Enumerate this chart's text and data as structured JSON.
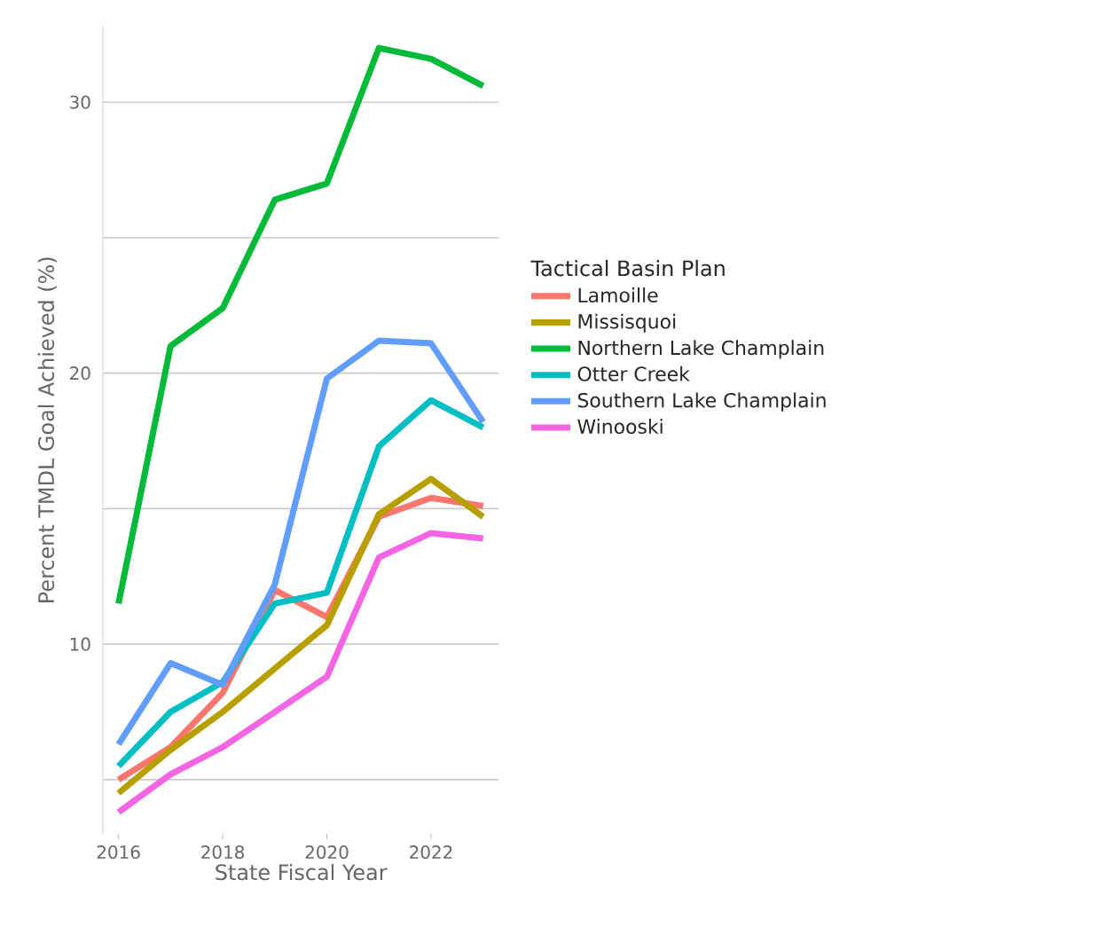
{
  "chart_data": {
    "type": "line",
    "xlabel": "State Fiscal Year",
    "ylabel": "Percent TMDL Goal Achieved (%)",
    "legend_title": "Tactical Basin Plan",
    "legend": "right",
    "grid": "y",
    "x": [
      2016,
      2017,
      2018,
      2019,
      2020,
      2021,
      2022,
      2023
    ],
    "xlim": [
      2015.7,
      2023.3
    ],
    "xticks": [
      2016,
      2018,
      2020,
      2022
    ],
    "ylim": [
      3,
      32.8
    ],
    "yticks": [
      {
        "value": 5,
        "label": null
      },
      10,
      {
        "value": 15,
        "label": null
      },
      20,
      {
        "value": 25,
        "label": null
      },
      30
    ],
    "series": [
      {
        "name": "Lamoille",
        "color": "#F8766D",
        "values": [
          5.0,
          6.2,
          8.2,
          12.0,
          11.0,
          14.7,
          15.4,
          15.1
        ]
      },
      {
        "name": "Missisquoi",
        "color": "#B79F00",
        "values": [
          4.5,
          6.1,
          7.5,
          9.1,
          10.7,
          14.8,
          16.1,
          14.7
        ]
      },
      {
        "name": "Northern Lake Champlain",
        "color": "#00BA38",
        "values": [
          11.5,
          21.0,
          22.4,
          26.4,
          27.0,
          32.0,
          31.6,
          30.6
        ]
      },
      {
        "name": "Otter Creek",
        "color": "#00BFC4",
        "values": [
          5.5,
          7.5,
          8.6,
          11.5,
          11.9,
          17.3,
          19.0,
          18.0
        ]
      },
      {
        "name": "Southern Lake Champlain",
        "color": "#619CFF",
        "values": [
          6.3,
          9.3,
          8.5,
          12.2,
          19.8,
          21.2,
          21.1,
          18.2
        ]
      },
      {
        "name": "Winooski",
        "color": "#F564E3",
        "values": [
          3.8,
          5.2,
          6.2,
          7.5,
          8.8,
          13.2,
          14.1,
          13.9
        ]
      }
    ]
  }
}
